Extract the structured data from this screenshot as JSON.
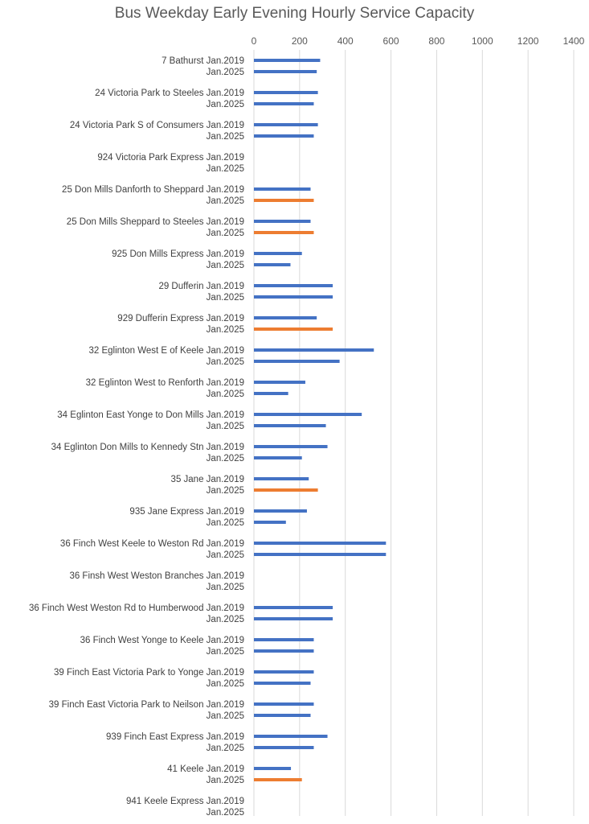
{
  "chart_data": {
    "type": "bar",
    "orientation": "horizontal",
    "title": "Bus Weekday Early Evening Hourly Service Capacity",
    "xlabel": "",
    "ylabel": "",
    "xlim": [
      0,
      1400
    ],
    "ticks": [
      0,
      200,
      400,
      600,
      800,
      1000,
      1200,
      1400
    ],
    "grid": true,
    "legend": "none",
    "colors": {
      "normal": "#4472c4",
      "highlight": "#ed7d31"
    },
    "groups": [
      {
        "route": "7 Bathurst",
        "bars": [
          {
            "period": "Jan.2019",
            "value": 290,
            "color": "normal"
          },
          {
            "period": "Jan.2025",
            "value": 275,
            "color": "normal"
          }
        ]
      },
      {
        "route": "24 Victoria Park to Steeles",
        "bars": [
          {
            "period": "Jan.2019",
            "value": 280,
            "color": "normal"
          },
          {
            "period": "Jan.2025",
            "value": 262,
            "color": "normal"
          }
        ]
      },
      {
        "route": "24 Victoria Park S of Consumers",
        "bars": [
          {
            "period": "Jan.2019",
            "value": 280,
            "color": "normal"
          },
          {
            "period": "Jan.2025",
            "value": 262,
            "color": "normal"
          }
        ]
      },
      {
        "route": "924 Victoria Park Express",
        "bars": [
          {
            "period": "Jan.2019",
            "value": 0,
            "color": "normal"
          },
          {
            "period": "Jan.2025",
            "value": 0,
            "color": "normal"
          }
        ]
      },
      {
        "route": "25 Don Mills Danforth to Sheppard",
        "bars": [
          {
            "period": "Jan.2019",
            "value": 248,
            "color": "normal"
          },
          {
            "period": "Jan.2025",
            "value": 262,
            "color": "highlight"
          }
        ]
      },
      {
        "route": "25 Don Mills Sheppard to Steeles",
        "bars": [
          {
            "period": "Jan.2019",
            "value": 248,
            "color": "normal"
          },
          {
            "period": "Jan.2025",
            "value": 262,
            "color": "highlight"
          }
        ]
      },
      {
        "route": "925 Don Mills Express",
        "bars": [
          {
            "period": "Jan.2019",
            "value": 210,
            "color": "normal"
          },
          {
            "period": "Jan.2025",
            "value": 160,
            "color": "normal"
          }
        ]
      },
      {
        "route": "29 Dufferin",
        "bars": [
          {
            "period": "Jan.2019",
            "value": 345,
            "color": "normal"
          },
          {
            "period": "Jan.2025",
            "value": 345,
            "color": "normal"
          }
        ]
      },
      {
        "route": "929 Dufferin Express",
        "bars": [
          {
            "period": "Jan.2019",
            "value": 275,
            "color": "normal"
          },
          {
            "period": "Jan.2025",
            "value": 345,
            "color": "highlight"
          }
        ]
      },
      {
        "route": "32 Eglinton West E of Keele",
        "bars": [
          {
            "period": "Jan.2019",
            "value": 525,
            "color": "normal"
          },
          {
            "period": "Jan.2025",
            "value": 375,
            "color": "normal"
          }
        ]
      },
      {
        "route": "32 Eglinton West to Renforth",
        "bars": [
          {
            "period": "Jan.2019",
            "value": 225,
            "color": "normal"
          },
          {
            "period": "Jan.2025",
            "value": 150,
            "color": "normal"
          }
        ]
      },
      {
        "route": "34 Eglinton East Yonge to Don Mills",
        "bars": [
          {
            "period": "Jan.2019",
            "value": 472,
            "color": "normal"
          },
          {
            "period": "Jan.2025",
            "value": 315,
            "color": "normal"
          }
        ]
      },
      {
        "route": "34 Eglinton Don Mills to Kennedy Stn",
        "bars": [
          {
            "period": "Jan.2019",
            "value": 322,
            "color": "normal"
          },
          {
            "period": "Jan.2025",
            "value": 210,
            "color": "normal"
          }
        ]
      },
      {
        "route": "35 Jane",
        "bars": [
          {
            "period": "Jan.2019",
            "value": 240,
            "color": "normal"
          },
          {
            "period": "Jan.2025",
            "value": 280,
            "color": "highlight"
          }
        ]
      },
      {
        "route": "935 Jane Express",
        "bars": [
          {
            "period": "Jan.2019",
            "value": 232,
            "color": "normal"
          },
          {
            "period": "Jan.2025",
            "value": 140,
            "color": "normal"
          }
        ]
      },
      {
        "route": "36 Finch West Keele to Weston Rd",
        "bars": [
          {
            "period": "Jan.2019",
            "value": 578,
            "color": "normal"
          },
          {
            "period": "Jan.2025",
            "value": 578,
            "color": "normal"
          }
        ]
      },
      {
        "route": "36 Finsh West Weston Branches",
        "bars": [
          {
            "period": "Jan.2019",
            "value": 0,
            "color": "normal"
          },
          {
            "period": "Jan.2025",
            "value": 0,
            "color": "normal"
          }
        ]
      },
      {
        "route": "36 Finch West Weston Rd to Humberwood",
        "bars": [
          {
            "period": "Jan.2019",
            "value": 345,
            "color": "normal"
          },
          {
            "period": "Jan.2025",
            "value": 345,
            "color": "normal"
          }
        ]
      },
      {
        "route": "36 Finch West Yonge to Keele",
        "bars": [
          {
            "period": "Jan.2019",
            "value": 262,
            "color": "normal"
          },
          {
            "period": "Jan.2025",
            "value": 262,
            "color": "normal"
          }
        ]
      },
      {
        "route": "39 Finch East Victoria Park to Yonge",
        "bars": [
          {
            "period": "Jan.2019",
            "value": 262,
            "color": "normal"
          },
          {
            "period": "Jan.2025",
            "value": 248,
            "color": "normal"
          }
        ]
      },
      {
        "route": "39 Finch East Victoria Park to Neilson",
        "bars": [
          {
            "period": "Jan.2019",
            "value": 262,
            "color": "normal"
          },
          {
            "period": "Jan.2025",
            "value": 248,
            "color": "normal"
          }
        ]
      },
      {
        "route": "939 Finch East Express",
        "bars": [
          {
            "period": "Jan.2019",
            "value": 322,
            "color": "normal"
          },
          {
            "period": "Jan.2025",
            "value": 262,
            "color": "normal"
          }
        ]
      },
      {
        "route": "41 Keele",
        "bars": [
          {
            "period": "Jan.2019",
            "value": 162,
            "color": "normal"
          },
          {
            "period": "Jan.2025",
            "value": 210,
            "color": "highlight"
          }
        ]
      },
      {
        "route": "941 Keele Express",
        "bars": [
          {
            "period": "Jan.2019",
            "value": 0,
            "color": "normal"
          },
          {
            "period": "Jan.2025",
            "value": 0,
            "color": "normal"
          }
        ]
      }
    ]
  }
}
